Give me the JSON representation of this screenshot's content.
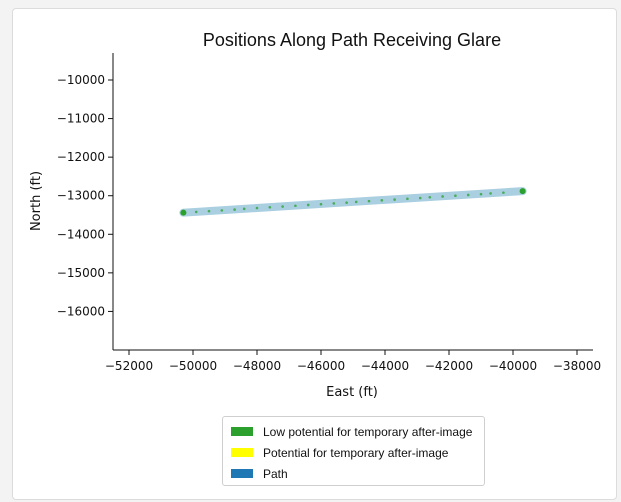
{
  "chart_data": {
    "type": "line",
    "title": "Positions Along Path Receiving Glare",
    "xlabel": "East (ft)",
    "ylabel": "North (ft)",
    "xlim": [
      -52500,
      -37500
    ],
    "ylim": [
      -17000,
      -9300
    ],
    "xticks": [
      -52000,
      -50000,
      -48000,
      -46000,
      -44000,
      -42000,
      -40000,
      -38000
    ],
    "yticks": [
      -10000,
      -11000,
      -12000,
      -13000,
      -14000,
      -15000,
      -16000
    ],
    "xtick_labels": [
      "−52000",
      "−50000",
      "−48000",
      "−46000",
      "−44000",
      "−42000",
      "−40000",
      "−38000"
    ],
    "ytick_labels": [
      "−10000",
      "−11000",
      "−12000",
      "−13000",
      "−14000",
      "−15000",
      "−16000"
    ],
    "path": {
      "start": [
        -50300,
        -13440
      ],
      "end": [
        -39700,
        -12880
      ]
    },
    "glare_points": {
      "x": [
        -50300,
        -49900,
        -49500,
        -49100,
        -48700,
        -48400,
        -48000,
        -47600,
        -47200,
        -46800,
        -46400,
        -46000,
        -45600,
        -45200,
        -44900,
        -44500,
        -44100,
        -43700,
        -43300,
        -42900,
        -42600,
        -42200,
        -41800,
        -41400,
        -41000,
        -40700,
        -40300,
        -39700
      ],
      "y": [
        -13440,
        -13420,
        -13400,
        -13380,
        -13360,
        -13340,
        -13320,
        -13300,
        -13280,
        -13260,
        -13240,
        -13220,
        -13200,
        -13180,
        -13160,
        -13140,
        -13120,
        -13100,
        -13080,
        -13060,
        -13040,
        -13020,
        -13000,
        -12980,
        -12960,
        -12940,
        -12920,
        -12880
      ]
    },
    "legend": {
      "placement": "bottom-center",
      "entries": [
        {
          "label": "Low potential for temporary after-image",
          "color": "#2ca02c"
        },
        {
          "label": "Potential for temporary after-image",
          "color": "#ffff00"
        },
        {
          "label": "Path",
          "color": "#1f77b4"
        }
      ]
    },
    "colors": {
      "path_band": "#a9cfe0",
      "glare_point": "#2ca02c"
    },
    "grid": false
  }
}
